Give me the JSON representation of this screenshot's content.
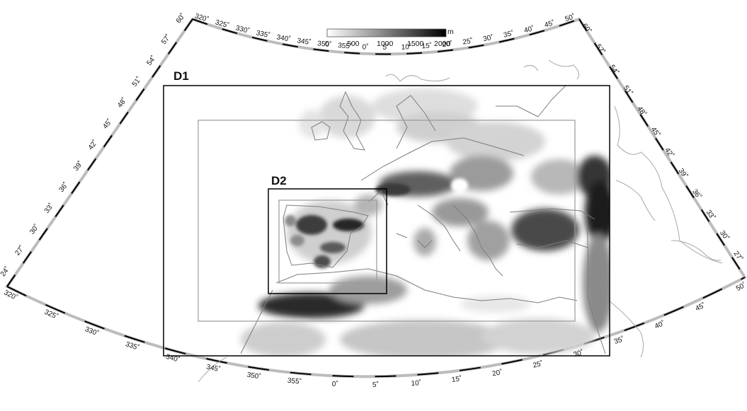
{
  "colorbar": {
    "unit": "m",
    "ticks": [
      "0",
      "500",
      "1000",
      "1500",
      "2000"
    ],
    "ramp_start": "#ffffff",
    "ramp_end": "#000000"
  },
  "domains": {
    "d1_label": "D1",
    "d2_label": "D2",
    "d1_color": "#000000",
    "inner_buffer_color": "#9a9a9a"
  },
  "axes": {
    "left_lat_ticks": [
      "60˚",
      "57˚",
      "54˚",
      "51˚",
      "48˚",
      "45˚",
      "42˚",
      "39˚",
      "36˚",
      "33˚",
      "30˚",
      "27˚",
      "24˚"
    ],
    "right_lat_ticks": [
      "60˚",
      "57˚",
      "54˚",
      "51˚",
      "48˚",
      "45˚",
      "42˚",
      "39˚",
      "36˚",
      "33˚",
      "30˚",
      "27˚"
    ],
    "top_lon_ticks": [
      "320˚",
      "325˚",
      "330˚",
      "335˚",
      "340˚",
      "345˚",
      "350˚",
      "355˚",
      "0˚",
      "5˚",
      "10˚",
      "15˚",
      "20˚",
      "25˚",
      "30˚",
      "35˚",
      "40˚",
      "45˚",
      "50˚"
    ],
    "bottom_lon_ticks": [
      "320˚",
      "325˚",
      "330˚",
      "335˚",
      "340˚",
      "345˚",
      "350˚",
      "355˚",
      "0˚",
      "5˚",
      "10˚",
      "15˚",
      "20˚",
      "25˚",
      "30˚",
      "35˚",
      "40˚",
      "45˚",
      "50˚"
    ]
  }
}
